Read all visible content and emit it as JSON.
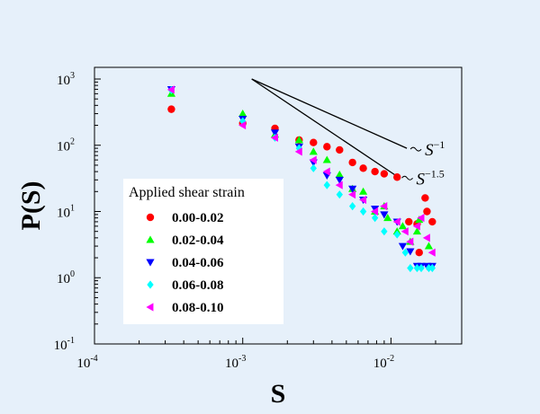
{
  "chart_data": {
    "type": "scatter",
    "xlabel": "S",
    "ylabel": "P(S)",
    "xscale": "log",
    "yscale": "log",
    "xlim": [
      0.0001,
      0.03
    ],
    "ylim": [
      0.1,
      1500
    ],
    "x_ticks": [
      {
        "base": "10",
        "exp": "-4",
        "value": 0.0001
      },
      {
        "base": "10",
        "exp": "-3",
        "value": 0.001
      },
      {
        "base": "10",
        "exp": "-2",
        "value": 0.01
      }
    ],
    "y_ticks": [
      {
        "base": "10",
        "exp": "-1",
        "value": 0.1
      },
      {
        "base": "10",
        "exp": "0",
        "value": 1
      },
      {
        "base": "10",
        "exp": "1",
        "value": 10
      },
      {
        "base": "10",
        "exp": "2",
        "value": 100
      },
      {
        "base": "10",
        "exp": "3",
        "value": 1000
      }
    ],
    "grid": false,
    "legend": {
      "title": "Applied shear strain",
      "position": "lower-left"
    },
    "series": [
      {
        "name": "0.00-0.02",
        "marker": "circle",
        "color": "#ff0000",
        "points": [
          [
            0.00033,
            350
          ],
          [
            0.001,
            215
          ],
          [
            0.00165,
            180
          ],
          [
            0.0024,
            120
          ],
          [
            0.003,
            110
          ],
          [
            0.0037,
            95
          ],
          [
            0.0045,
            85
          ],
          [
            0.0055,
            55
          ],
          [
            0.0065,
            45
          ],
          [
            0.0078,
            40
          ],
          [
            0.009,
            37
          ],
          [
            0.011,
            33
          ],
          [
            0.0132,
            7
          ],
          [
            0.015,
            6.5
          ],
          [
            0.0155,
            2.4
          ],
          [
            0.017,
            16
          ],
          [
            0.0175,
            10
          ],
          [
            0.019,
            7
          ]
        ]
      },
      {
        "name": "0.02-0.04",
        "marker": "triangle-up",
        "color": "#00ff00",
        "points": [
          [
            0.00033,
            600
          ],
          [
            0.001,
            300
          ],
          [
            0.00165,
            145
          ],
          [
            0.0024,
            120
          ],
          [
            0.003,
            80
          ],
          [
            0.0037,
            60
          ],
          [
            0.0045,
            36
          ],
          [
            0.0055,
            22
          ],
          [
            0.0065,
            20
          ],
          [
            0.0078,
            10
          ],
          [
            0.009,
            12
          ],
          [
            0.0095,
            8
          ],
          [
            0.011,
            5
          ],
          [
            0.012,
            6
          ],
          [
            0.0135,
            3.5
          ],
          [
            0.015,
            5
          ],
          [
            0.0155,
            7.5
          ],
          [
            0.018,
            3
          ]
        ]
      },
      {
        "name": "0.04-0.06",
        "marker": "triangle-down",
        "color": "#0000ff",
        "points": [
          [
            0.00033,
            700
          ],
          [
            0.001,
            250
          ],
          [
            0.00165,
            155
          ],
          [
            0.0024,
            95
          ],
          [
            0.003,
            55
          ],
          [
            0.0037,
            35
          ],
          [
            0.0045,
            30
          ],
          [
            0.0055,
            22
          ],
          [
            0.0065,
            15
          ],
          [
            0.0078,
            11
          ],
          [
            0.009,
            9
          ],
          [
            0.011,
            7
          ],
          [
            0.012,
            3
          ],
          [
            0.0135,
            2.5
          ],
          [
            0.015,
            1.5
          ],
          [
            0.016,
            1.5
          ],
          [
            0.0175,
            1.5
          ],
          [
            0.019,
            1.5
          ]
        ]
      },
      {
        "name": "0.06-0.08",
        "marker": "diamond",
        "color": "#00ffff",
        "points": [
          [
            0.00033,
            680
          ],
          [
            0.001,
            230
          ],
          [
            0.00165,
            130
          ],
          [
            0.0024,
            90
          ],
          [
            0.003,
            45
          ],
          [
            0.0037,
            25
          ],
          [
            0.0045,
            18
          ],
          [
            0.0055,
            12
          ],
          [
            0.0065,
            10
          ],
          [
            0.0078,
            8
          ],
          [
            0.009,
            5
          ],
          [
            0.011,
            4.5
          ],
          [
            0.0125,
            2.4
          ],
          [
            0.0135,
            1.4
          ],
          [
            0.015,
            1.4
          ],
          [
            0.016,
            1.4
          ],
          [
            0.018,
            1.4
          ],
          [
            0.019,
            1.4
          ]
        ]
      },
      {
        "name": "0.08-0.10",
        "marker": "triangle-left",
        "color": "#ff00ff",
        "points": [
          [
            0.00033,
            690
          ],
          [
            0.001,
            200
          ],
          [
            0.00165,
            130
          ],
          [
            0.0024,
            80
          ],
          [
            0.003,
            60
          ],
          [
            0.0037,
            40
          ],
          [
            0.0045,
            25
          ],
          [
            0.0055,
            18
          ],
          [
            0.0065,
            15
          ],
          [
            0.0078,
            10
          ],
          [
            0.009,
            12
          ],
          [
            0.011,
            7
          ],
          [
            0.0125,
            5
          ],
          [
            0.0135,
            3.5
          ],
          [
            0.015,
            6
          ],
          [
            0.016,
            8
          ],
          [
            0.0175,
            4
          ],
          [
            0.019,
            2.4
          ]
        ]
      }
    ],
    "reference_lines": [
      {
        "label_base": "S",
        "label_exp": "−1",
        "slope": -1,
        "from": [
          0.00115,
          1000
        ],
        "to": [
          0.0128,
          90
        ]
      },
      {
        "label_base": "S",
        "label_exp": "−1.5",
        "slope": -1.5,
        "from": [
          0.00115,
          1000
        ],
        "to": [
          0.0112,
          33
        ]
      }
    ]
  }
}
